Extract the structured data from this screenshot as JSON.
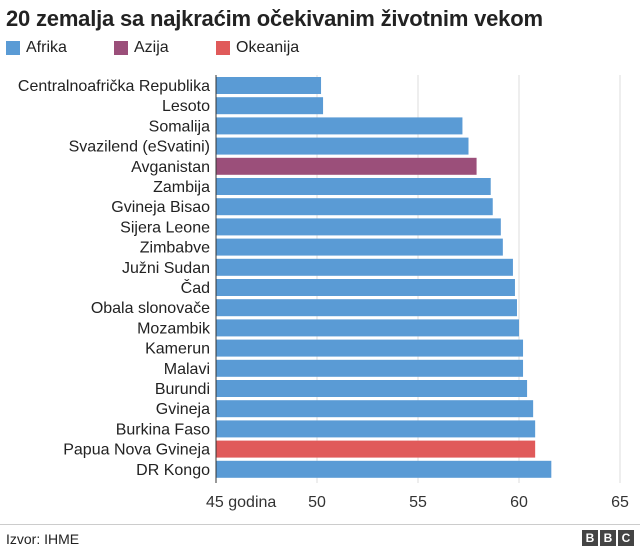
{
  "title": "20 zemalja sa najkraćim očekivanim životnim vekom",
  "legend": [
    {
      "label": "Afrika",
      "color": "#5a9bd5"
    },
    {
      "label": "Azija",
      "color": "#9b4f7a"
    },
    {
      "label": "Okeanija",
      "color": "#e05a5a"
    }
  ],
  "source": "Izvor: IHME",
  "logo": [
    "B",
    "B",
    "C"
  ],
  "chart_data": {
    "type": "bar",
    "orientation": "horizontal",
    "categories": [
      "Centralnoafrička Republika",
      "Lesoto",
      "Somalija",
      "Svazilend (eSvatini)",
      "Avganistan",
      "Zambija",
      "Gvineja Bisao",
      "Sijera Leone",
      "Zimbabve",
      "Južni Sudan",
      "Čad",
      "Obala slonovače",
      "Mozambik",
      "Kamerun",
      "Malavi",
      "Burundi",
      "Gvineja",
      "Burkina Faso",
      "Papua Nova Gvineja",
      "DR Kongo"
    ],
    "values": [
      50.2,
      50.3,
      57.2,
      57.5,
      57.9,
      58.6,
      58.7,
      59.1,
      59.2,
      59.7,
      59.8,
      59.9,
      60.0,
      60.2,
      60.2,
      60.4,
      60.7,
      60.8,
      60.8,
      61.6
    ],
    "regions": [
      "Afrika",
      "Afrika",
      "Afrika",
      "Afrika",
      "Azija",
      "Afrika",
      "Afrika",
      "Afrika",
      "Afrika",
      "Afrika",
      "Afrika",
      "Afrika",
      "Afrika",
      "Afrika",
      "Afrika",
      "Afrika",
      "Afrika",
      "Afrika",
      "Okeanija",
      "Afrika"
    ],
    "region_colors": {
      "Afrika": "#5a9bd5",
      "Azija": "#9b4f7a",
      "Okeanija": "#e05a5a"
    },
    "xlim": [
      45,
      65
    ],
    "xticks": [
      45,
      50,
      55,
      60,
      65
    ],
    "xtick_labels": [
      "45 godina",
      "50",
      "55",
      "60",
      "65"
    ],
    "gridlines": true
  }
}
